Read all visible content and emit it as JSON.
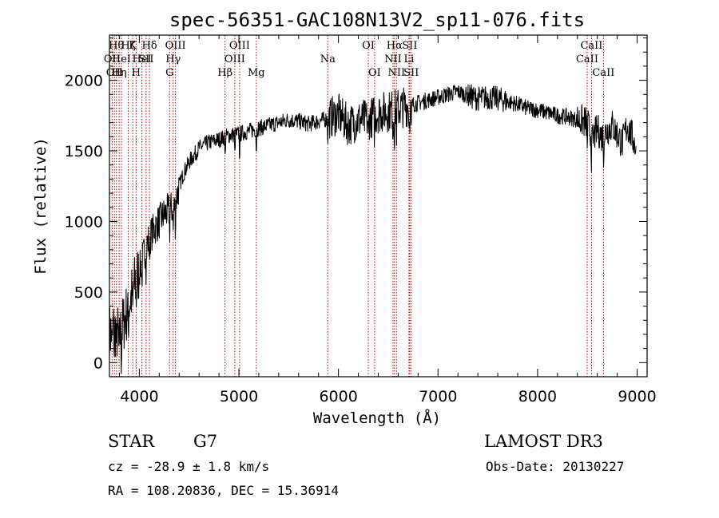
{
  "chart_data": {
    "type": "line",
    "title": "spec-56351-GAC108N13V2_sp11-076.fits",
    "xlabel": "Wavelength (Å)",
    "ylabel": "Flux (relative)",
    "xlim": [
      3700,
      9100
    ],
    "ylim": [
      -100,
      2320
    ],
    "xticks": [
      4000,
      5000,
      6000,
      7000,
      8000,
      9000
    ],
    "yticks": [
      0,
      500,
      1000,
      1500,
      2000
    ],
    "series": [
      {
        "name": "flux",
        "x": [
          3700,
          3750,
          3800,
          3850,
          3900,
          3950,
          4000,
          4050,
          4100,
          4150,
          4200,
          4250,
          4300,
          4350,
          4400,
          4450,
          4500,
          4600,
          4700,
          4800,
          4900,
          5000,
          5100,
          5200,
          5300,
          5400,
          5500,
          5600,
          5700,
          5800,
          5900,
          6000,
          6100,
          6200,
          6300,
          6400,
          6500,
          6600,
          6700,
          6800,
          6900,
          7000,
          7100,
          7200,
          7300,
          7400,
          7500,
          7600,
          7700,
          7800,
          7900,
          8000,
          8100,
          8200,
          8300,
          8400,
          8500,
          8550,
          8600,
          8650,
          8700,
          8750,
          8800,
          8850,
          8900,
          8950,
          9000
        ],
        "y": [
          200,
          250,
          180,
          300,
          420,
          550,
          650,
          780,
          880,
          950,
          1000,
          1050,
          1080,
          1100,
          1250,
          1350,
          1420,
          1520,
          1560,
          1580,
          1610,
          1620,
          1640,
          1660,
          1680,
          1700,
          1720,
          1710,
          1690,
          1710,
          1730,
          1760,
          1680,
          1720,
          1720,
          1770,
          1780,
          1800,
          1820,
          1840,
          1860,
          1880,
          1900,
          1920,
          1890,
          1870,
          1880,
          1870,
          1850,
          1830,
          1800,
          1790,
          1770,
          1750,
          1740,
          1720,
          1700,
          1580,
          1650,
          1600,
          1650,
          1680,
          1620,
          1550,
          1680,
          1600,
          1500
        ]
      }
    ]
  },
  "spectral_lines": [
    {
      "wl": 3727,
      "label": "OII",
      "row": 2
    },
    {
      "wl": 3750,
      "label": "OII",
      "row": 3
    },
    {
      "wl": 3770,
      "label": "Hθ",
      "row": 1
    },
    {
      "wl": 3797,
      "label": "Hη",
      "row": 3
    },
    {
      "wl": 3820,
      "label": "HeI",
      "row": 2
    },
    {
      "wl": 3889,
      "label": "Hζ",
      "row": 1
    },
    {
      "wl": 3934,
      "label": "K",
      "row": 1
    },
    {
      "wl": 3968,
      "label": "H",
      "row": 3
    },
    {
      "wl": 4026,
      "label": "HeI",
      "row": 2
    },
    {
      "wl": 4069,
      "label": "SII",
      "row": 2
    },
    {
      "wl": 4102,
      "label": "Hδ",
      "row": 1
    },
    {
      "wl": 4304,
      "label": "G",
      "row": 3
    },
    {
      "wl": 4340,
      "label": "Hγ",
      "row": 2
    },
    {
      "wl": 4363,
      "label": "OIII",
      "row": 1
    },
    {
      "wl": 4861,
      "label": "Hβ",
      "row": 3
    },
    {
      "wl": 4959,
      "label": "OIII",
      "row": 2
    },
    {
      "wl": 5007,
      "label": "OIII",
      "row": 1
    },
    {
      "wl": 5175,
      "label": "Mg",
      "row": 3
    },
    {
      "wl": 5893,
      "label": "Na",
      "row": 2
    },
    {
      "wl": 6300,
      "label": "OI",
      "row": 1
    },
    {
      "wl": 6363,
      "label": "OI",
      "row": 3
    },
    {
      "wl": 6548,
      "label": "NII",
      "row": 2
    },
    {
      "wl": 6563,
      "label": "Hα",
      "row": 1
    },
    {
      "wl": 6583,
      "label": "NII",
      "row": 3
    },
    {
      "wl": 6708,
      "label": "Li",
      "row": 2
    },
    {
      "wl": 6716,
      "label": "SII",
      "row": 1
    },
    {
      "wl": 6731,
      "label": "SII",
      "row": 3
    },
    {
      "wl": 8498,
      "label": "CaII",
      "row": 2
    },
    {
      "wl": 8542,
      "label": "CaII",
      "row": 1
    },
    {
      "wl": 8662,
      "label": "CaII",
      "row": 3
    }
  ],
  "info": {
    "object_class": "STAR",
    "subclass": "G7",
    "survey": "LAMOST DR3",
    "redshift": "cz = -28.9 ± 1.8 km/s",
    "obs_date": "Obs-Date: 20130227",
    "coords": "RA = 108.20836, DEC =  15.36914"
  }
}
